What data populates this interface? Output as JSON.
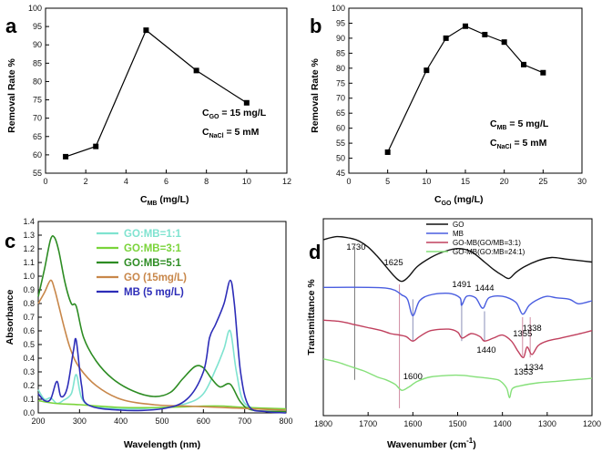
{
  "chart_data": [
    {
      "panel": "a",
      "type": "line",
      "x": [
        1,
        2.5,
        5,
        7.5,
        10
      ],
      "y": [
        59.5,
        62.3,
        94,
        83,
        74.2
      ],
      "xlim": [
        0,
        12
      ],
      "ylim": [
        55,
        100
      ],
      "xticks": [
        0,
        2,
        4,
        6,
        8,
        10,
        12
      ],
      "yticks": [
        55,
        60,
        65,
        70,
        75,
        80,
        85,
        90,
        95,
        100
      ],
      "xlabel": "CMB (mg/L)",
      "ylabel": "Removal Rate %",
      "annotations": [
        "CGO = 15 mg/L",
        "CNaCl = 5 mM"
      ]
    },
    {
      "panel": "b",
      "type": "line",
      "x": [
        5,
        10,
        12.5,
        15,
        17.5,
        20,
        22.5,
        25
      ],
      "y": [
        52,
        79.3,
        90,
        94,
        91.2,
        88.7,
        81.2,
        78.5
      ],
      "xlim": [
        0,
        30
      ],
      "ylim": [
        45,
        100
      ],
      "xticks": [
        0,
        5,
        10,
        15,
        20,
        25,
        30
      ],
      "yticks": [
        45,
        50,
        55,
        60,
        65,
        70,
        75,
        80,
        85,
        90,
        95,
        100
      ],
      "xlabel": "CGO (mg/L)",
      "ylabel": "Removal Rate %",
      "annotations": [
        "CMB = 5 mg/L",
        "CNaCl = 5 mM"
      ]
    },
    {
      "panel": "c",
      "type": "line",
      "xlim": [
        200,
        800
      ],
      "ylim": [
        0,
        1.4
      ],
      "xticks": [
        200,
        300,
        400,
        500,
        600,
        700,
        800
      ],
      "yticks": [
        0.0,
        0.1,
        0.2,
        0.3,
        0.4,
        0.5,
        0.6,
        0.7,
        0.8,
        0.9,
        1.0,
        1.1,
        1.2,
        1.3,
        1.4
      ],
      "xlabel": "Wavelength (nm)",
      "ylabel": "Absorbance",
      "series": [
        {
          "name": "GO:MB=1:1",
          "color": "#7fe3d0",
          "x": [
            200,
            215,
            230,
            245,
            260,
            280,
            292,
            305,
            330,
            400,
            500,
            560,
            600,
            630,
            650,
            665,
            680,
            700,
            750,
            800
          ],
          "y": [
            0.17,
            0.1,
            0.11,
            0.07,
            0.09,
            0.14,
            0.28,
            0.11,
            0.05,
            0.03,
            0.04,
            0.07,
            0.14,
            0.32,
            0.47,
            0.6,
            0.3,
            0.07,
            0.03,
            0.02
          ]
        },
        {
          "name": "GO:MB=3:1",
          "color": "#7ad43a",
          "x": [
            200,
            240,
            300,
            400,
            500,
            600,
            650,
            700,
            800
          ],
          "y": [
            0.09,
            0.07,
            0.06,
            0.04,
            0.04,
            0.05,
            0.05,
            0.04,
            0.03
          ]
        },
        {
          "name": "GO:MB=5:1",
          "color": "#2d8c23",
          "x": [
            200,
            215,
            230,
            240,
            250,
            265,
            280,
            292,
            310,
            340,
            380,
            430,
            480,
            520,
            550,
            580,
            600,
            620,
            640,
            665,
            690,
            720,
            800
          ],
          "y": [
            0.85,
            1.05,
            1.27,
            1.28,
            1.18,
            0.95,
            0.8,
            0.78,
            0.55,
            0.38,
            0.25,
            0.16,
            0.12,
            0.15,
            0.25,
            0.34,
            0.33,
            0.25,
            0.19,
            0.21,
            0.08,
            0.02,
            0.01
          ]
        },
        {
          "name": "GO (15mg/L)",
          "color": "#c8874a",
          "x": [
            200,
            215,
            230,
            240,
            250,
            265,
            280,
            300,
            340,
            400,
            480,
            560,
            640,
            720,
            800
          ],
          "y": [
            0.8,
            0.88,
            0.97,
            0.9,
            0.78,
            0.6,
            0.45,
            0.33,
            0.2,
            0.1,
            0.06,
            0.05,
            0.04,
            0.03,
            0.02
          ]
        },
        {
          "name": "MB (5 mg/L)",
          "color": "#2d2db8",
          "x": [
            200,
            215,
            230,
            245,
            255,
            270,
            285,
            292,
            305,
            320,
            400,
            500,
            560,
            600,
            615,
            630,
            650,
            665,
            675,
            690,
            710,
            750,
            800
          ],
          "y": [
            0.14,
            0.09,
            0.1,
            0.23,
            0.12,
            0.18,
            0.45,
            0.53,
            0.2,
            0.06,
            0.02,
            0.03,
            0.1,
            0.3,
            0.55,
            0.65,
            0.8,
            0.97,
            0.8,
            0.3,
            0.05,
            0.01,
            0.0
          ]
        }
      ]
    },
    {
      "panel": "d",
      "type": "line",
      "xlim": [
        1800,
        1200
      ],
      "xticks": [
        1800,
        1700,
        1600,
        1500,
        1400,
        1300,
        1200
      ],
      "xlabel": "Wavenumber (cm-1)",
      "ylabel": "Transmittance %",
      "y_units": "arbitrary (vertically offset spectra, 0-100 scale)",
      "series": [
        {
          "name": "GO",
          "color": "#111111",
          "x": [
            1800,
            1770,
            1740,
            1720,
            1700,
            1680,
            1660,
            1640,
            1625,
            1610,
            1590,
            1560,
            1530,
            1500,
            1470,
            1440,
            1420,
            1400,
            1385,
            1370,
            1350,
            1320,
            1290,
            1260,
            1230,
            1200
          ],
          "y": [
            88,
            90,
            89,
            87,
            83,
            77,
            70,
            63,
            60,
            63,
            70,
            76,
            80,
            82,
            80,
            73,
            68,
            64,
            62,
            66,
            70,
            74,
            76,
            75,
            74,
            73
          ]
        },
        {
          "name": "MB",
          "color": "#4a5ee0",
          "x": [
            1800,
            1700,
            1660,
            1640,
            1625,
            1612,
            1600,
            1585,
            1560,
            1520,
            1495,
            1491,
            1480,
            1460,
            1444,
            1430,
            1400,
            1370,
            1355,
            1340,
            1320,
            1300,
            1280,
            1250,
            1230,
            1200
          ],
          "y": [
            56,
            56,
            55.5,
            54,
            51,
            48,
            37,
            47,
            51,
            52,
            49,
            44,
            50,
            49,
            42,
            49,
            50,
            46,
            38,
            44,
            48,
            50,
            49,
            48,
            45,
            47
          ]
        },
        {
          "name": "GO-MB(GO/MB=3:1)",
          "color": "#c0405e",
          "x": [
            1800,
            1760,
            1730,
            1700,
            1670,
            1650,
            1630,
            1615,
            1600,
            1585,
            1560,
            1520,
            1500,
            1490,
            1470,
            1450,
            1440,
            1420,
            1400,
            1380,
            1365,
            1353,
            1345,
            1334,
            1320,
            1300,
            1270,
            1240,
            1200
          ],
          "y": [
            34,
            33,
            31,
            29,
            27,
            25,
            24,
            23,
            20,
            23,
            27,
            28,
            26,
            22,
            25,
            23,
            20,
            22,
            24,
            20,
            13,
            9,
            16,
            11,
            17,
            20,
            22,
            24,
            27
          ]
        },
        {
          "name": "GO-MB(GO:MB=24:1)",
          "color": "#86e07a",
          "x": [
            1800,
            1770,
            1740,
            1710,
            1680,
            1660,
            1640,
            1625,
            1610,
            1590,
            1560,
            1520,
            1490,
            1460,
            1430,
            1410,
            1400,
            1390,
            1384,
            1378,
            1360,
            1320,
            1280,
            1240,
            1200
          ],
          "y": [
            8,
            6,
            3,
            0,
            -4,
            -6,
            -9,
            -13,
            -11,
            -7,
            -4,
            -3,
            -3,
            -4,
            -5,
            -6,
            -8,
            -12,
            -18,
            -12,
            -10,
            -8,
            -7,
            -6,
            -5
          ]
        }
      ],
      "marker_lines": [
        {
          "x": 1730,
          "color": "#777777",
          "y_top": 83,
          "y_bot": -6
        },
        {
          "x": 1630,
          "color": "#d08aa0",
          "y_top": 58,
          "y_bot": -25
        },
        {
          "x": 1600,
          "color": "#8a8fb8",
          "y_top": 48,
          "y_bot": 20
        },
        {
          "x": 1491,
          "color": "#8a8fb8",
          "y_top": 46,
          "y_bot": 20
        },
        {
          "x": 1440,
          "color": "#8a8fb8",
          "y_top": 40,
          "y_bot": 20
        },
        {
          "x": 1355,
          "color": "#d08aa0",
          "y_top": 36,
          "y_bot": 10
        },
        {
          "x": 1338,
          "color": "#d08aa0",
          "y_top": 36,
          "y_bot": 9
        }
      ]
    }
  ],
  "labels": {
    "a": {
      "panel_letter": "a",
      "ylabel": "Removal Rate %",
      "xlabel_main": "C",
      "xlabel_sub": "MB",
      "xlabel_unit": "(mg/L)",
      "ann1_main": "C",
      "ann1_sub": "GO",
      "ann1_rest": "= 15 mg/L",
      "ann2_main": "C",
      "ann2_sub": "NaCl",
      "ann2_rest": "=   5 mM",
      "xticks": [
        "0",
        "2",
        "4",
        "6",
        "8",
        "10",
        "12"
      ],
      "yticks": [
        "55",
        "60",
        "65",
        "70",
        "75",
        "80",
        "85",
        "90",
        "95",
        "100"
      ]
    },
    "b": {
      "panel_letter": "b",
      "ylabel": "Removal Rate %",
      "xlabel_main": "C",
      "xlabel_sub": "GO",
      "xlabel_unit": "(mg/L)",
      "ann1_main": "C",
      "ann1_sub": "MB",
      "ann1_rest": "= 5 mg/L",
      "ann2_main": "C",
      "ann2_sub": "NaCl",
      "ann2_rest": "= 5 mM",
      "xticks": [
        "0",
        "5",
        "10",
        "15",
        "20",
        "25",
        "30"
      ],
      "yticks": [
        "45",
        "50",
        "55",
        "60",
        "65",
        "70",
        "75",
        "80",
        "85",
        "90",
        "95",
        "100"
      ]
    },
    "c": {
      "panel_letter": "c",
      "ylabel": "Absorbance",
      "xlabel": "Wavelength (nm)",
      "xticks": [
        "200",
        "300",
        "400",
        "500",
        "600",
        "700",
        "800"
      ],
      "yticks": [
        "0.0",
        "0.1",
        "0.2",
        "0.3",
        "0.4",
        "0.5",
        "0.6",
        "0.7",
        "0.8",
        "0.9",
        "1.0",
        "1.1",
        "1.2",
        "1.3",
        "1.4"
      ]
    },
    "d": {
      "panel_letter": "d",
      "ylabel": "Transmittance %",
      "xlabel_main": "Wavenumber (cm",
      "xlabel_sup": "-1",
      "xlabel_close": ")",
      "xticks": [
        "1800",
        "1700",
        "1600",
        "1500",
        "1400",
        "1300",
        "1200"
      ],
      "peaks": [
        "1730",
        "1625",
        "1491",
        "1444",
        "1355",
        "1338",
        "1440",
        "1600",
        "1353",
        "1334"
      ]
    }
  }
}
